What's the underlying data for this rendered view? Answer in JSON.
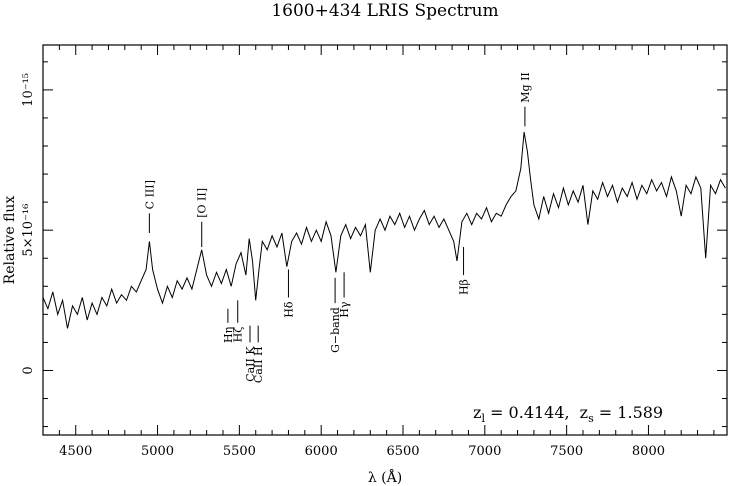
{
  "chart_data": {
    "type": "line",
    "title": "1600+434 LRIS Spectrum",
    "xlabel": "λ (Å)",
    "ylabel": "Relative flux",
    "xlim": [
      4300,
      8480
    ],
    "ylim": [
      -2.3e-16,
      1.16e-15
    ],
    "x_ticks": [
      {
        "value": 4500,
        "label": "4500"
      },
      {
        "value": 5000,
        "label": "5000"
      },
      {
        "value": 5500,
        "label": "5500"
      },
      {
        "value": 6000,
        "label": "6000"
      },
      {
        "value": 6500,
        "label": "6500"
      },
      {
        "value": 7000,
        "label": "7000"
      },
      {
        "value": 7500,
        "label": "7500"
      },
      {
        "value": 8000,
        "label": "8000"
      }
    ],
    "y_ticks": [
      {
        "value": 0,
        "label": "0"
      },
      {
        "value": 5e-16,
        "label": "5×10⁻¹⁶"
      },
      {
        "value": 1e-15,
        "label": "10⁻¹⁵"
      }
    ],
    "redshift_annotation": "z_l = 0.4144, z_s = 1.589",
    "redshift_parts": {
      "z": "z",
      "l_sub": "l",
      "l_value": " = 0.4144,",
      "s_sub": "s",
      "s_value": " = 1.589"
    },
    "series": [
      {
        "unit_scale": 1e-16,
        "points": [
          [
            4300,
            2.6
          ],
          [
            4330,
            2.2
          ],
          [
            4360,
            2.8
          ],
          [
            4390,
            2.0
          ],
          [
            4420,
            2.5
          ],
          [
            4450,
            1.5
          ],
          [
            4480,
            2.3
          ],
          [
            4510,
            2.0
          ],
          [
            4540,
            2.6
          ],
          [
            4570,
            1.8
          ],
          [
            4600,
            2.4
          ],
          [
            4630,
            2.0
          ],
          [
            4660,
            2.6
          ],
          [
            4690,
            2.3
          ],
          [
            4720,
            2.9
          ],
          [
            4750,
            2.4
          ],
          [
            4780,
            2.7
          ],
          [
            4810,
            2.5
          ],
          [
            4840,
            3.0
          ],
          [
            4870,
            2.8
          ],
          [
            4900,
            3.2
          ],
          [
            4930,
            3.6
          ],
          [
            4950,
            4.6
          ],
          [
            4970,
            3.6
          ],
          [
            5000,
            2.9
          ],
          [
            5030,
            2.4
          ],
          [
            5060,
            3.0
          ],
          [
            5090,
            2.6
          ],
          [
            5120,
            3.2
          ],
          [
            5150,
            2.9
          ],
          [
            5180,
            3.3
          ],
          [
            5210,
            2.9
          ],
          [
            5240,
            3.6
          ],
          [
            5270,
            4.3
          ],
          [
            5300,
            3.4
          ],
          [
            5330,
            3.0
          ],
          [
            5360,
            3.5
          ],
          [
            5390,
            3.1
          ],
          [
            5420,
            3.6
          ],
          [
            5450,
            3.0
          ],
          [
            5480,
            3.8
          ],
          [
            5510,
            4.2
          ],
          [
            5540,
            3.4
          ],
          [
            5560,
            4.7
          ],
          [
            5580,
            3.9
          ],
          [
            5600,
            2.5
          ],
          [
            5620,
            3.6
          ],
          [
            5640,
            4.6
          ],
          [
            5670,
            4.3
          ],
          [
            5700,
            4.8
          ],
          [
            5730,
            4.4
          ],
          [
            5760,
            4.9
          ],
          [
            5790,
            3.7
          ],
          [
            5820,
            4.6
          ],
          [
            5850,
            4.9
          ],
          [
            5880,
            4.5
          ],
          [
            5910,
            5.1
          ],
          [
            5940,
            4.6
          ],
          [
            5970,
            5.0
          ],
          [
            6000,
            4.6
          ],
          [
            6030,
            5.3
          ],
          [
            6060,
            4.8
          ],
          [
            6090,
            3.5
          ],
          [
            6120,
            4.8
          ],
          [
            6150,
            5.2
          ],
          [
            6180,
            4.7
          ],
          [
            6210,
            5.1
          ],
          [
            6240,
            4.8
          ],
          [
            6270,
            5.2
          ],
          [
            6300,
            3.5
          ],
          [
            6330,
            5.0
          ],
          [
            6360,
            5.4
          ],
          [
            6390,
            5.0
          ],
          [
            6420,
            5.5
          ],
          [
            6450,
            5.2
          ],
          [
            6480,
            5.6
          ],
          [
            6510,
            5.1
          ],
          [
            6540,
            5.5
          ],
          [
            6570,
            5.0
          ],
          [
            6600,
            5.4
          ],
          [
            6630,
            5.7
          ],
          [
            6660,
            5.2
          ],
          [
            6690,
            5.5
          ],
          [
            6720,
            5.1
          ],
          [
            6750,
            5.4
          ],
          [
            6780,
            5.0
          ],
          [
            6810,
            4.6
          ],
          [
            6830,
            3.9
          ],
          [
            6860,
            5.3
          ],
          [
            6890,
            5.6
          ],
          [
            6920,
            5.2
          ],
          [
            6950,
            5.6
          ],
          [
            6980,
            5.4
          ],
          [
            7010,
            5.8
          ],
          [
            7040,
            5.3
          ],
          [
            7070,
            5.6
          ],
          [
            7100,
            5.5
          ],
          [
            7130,
            5.9
          ],
          [
            7160,
            6.2
          ],
          [
            7190,
            6.4
          ],
          [
            7220,
            7.2
          ],
          [
            7240,
            8.5
          ],
          [
            7260,
            7.8
          ],
          [
            7280,
            6.8
          ],
          [
            7300,
            5.9
          ],
          [
            7330,
            5.4
          ],
          [
            7360,
            6.2
          ],
          [
            7390,
            5.6
          ],
          [
            7420,
            6.3
          ],
          [
            7450,
            5.8
          ],
          [
            7480,
            6.5
          ],
          [
            7510,
            5.9
          ],
          [
            7540,
            6.4
          ],
          [
            7570,
            6.0
          ],
          [
            7600,
            6.6
          ],
          [
            7630,
            5.2
          ],
          [
            7660,
            6.4
          ],
          [
            7690,
            6.1
          ],
          [
            7720,
            6.7
          ],
          [
            7750,
            6.2
          ],
          [
            7780,
            6.6
          ],
          [
            7810,
            6.0
          ],
          [
            7840,
            6.5
          ],
          [
            7870,
            6.2
          ],
          [
            7900,
            6.7
          ],
          [
            7930,
            6.1
          ],
          [
            7960,
            6.6
          ],
          [
            7990,
            6.3
          ],
          [
            8020,
            6.8
          ],
          [
            8050,
            6.4
          ],
          [
            8080,
            6.7
          ],
          [
            8110,
            6.2
          ],
          [
            8140,
            6.9
          ],
          [
            8170,
            6.4
          ],
          [
            8200,
            5.5
          ],
          [
            8230,
            6.6
          ],
          [
            8260,
            6.3
          ],
          [
            8290,
            6.9
          ],
          [
            8320,
            6.5
          ],
          [
            8350,
            4.0
          ],
          [
            8380,
            6.6
          ],
          [
            8410,
            6.3
          ],
          [
            8440,
            6.8
          ],
          [
            8470,
            6.5
          ]
        ]
      }
    ],
    "lines": [
      {
        "id": "c3",
        "label": "C III]",
        "wavelength": 4950,
        "side": "above",
        "y1": 4.9,
        "y2": 5.6
      },
      {
        "id": "o2",
        "label": "[O II]",
        "wavelength": 5270,
        "side": "above",
        "y1": 4.4,
        "y2": 5.3
      },
      {
        "id": "mg2",
        "label": "Mg II",
        "wavelength": 7245,
        "side": "above",
        "y1": 8.7,
        "y2": 9.4
      },
      {
        "id": "h-eta",
        "label": "Hη",
        "wavelength": 5430,
        "side": "below",
        "y1": 2.2,
        "y2": 1.7
      },
      {
        "id": "h-zeta",
        "label": "Hζ",
        "wavelength": 5490,
        "side": "below",
        "y1": 2.5,
        "y2": 1.7
      },
      {
        "id": "ca-k",
        "label": "CaII K",
        "wavelength": 5565,
        "side": "below",
        "y1": 1.6,
        "y2": 1.0
      },
      {
        "id": "ca-h",
        "label": "CaII H",
        "wavelength": 5615,
        "side": "below",
        "y1": 1.6,
        "y2": 1.0
      },
      {
        "id": "h-delta",
        "label": "Hδ",
        "wavelength": 5800,
        "side": "below",
        "y1": 3.6,
        "y2": 2.6
      },
      {
        "id": "g-band",
        "label": "G−band",
        "wavelength": 6085,
        "side": "below",
        "y1": 3.3,
        "y2": 2.4
      },
      {
        "id": "h-gamma",
        "label": "Hγ",
        "wavelength": 6140,
        "side": "below",
        "y1": 3.5,
        "y2": 2.6
      },
      {
        "id": "h-beta",
        "label": "Hβ",
        "wavelength": 6870,
        "side": "below",
        "y1": 4.4,
        "y2": 3.4
      }
    ]
  }
}
